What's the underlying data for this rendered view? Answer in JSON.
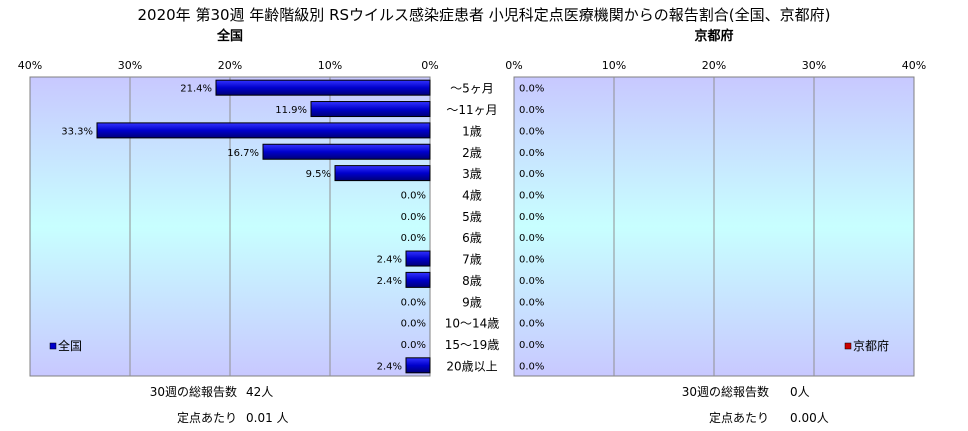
{
  "title": "2020年 第30週 年齢階級別 RSウイルス感染症患者 小児科定点医療機関からの報告割合(全国、京都府)",
  "categories": [
    "～5ヶ月",
    "～11ヶ月",
    "1歳",
    "2歳",
    "3歳",
    "4歳",
    "5歳",
    "6歳",
    "7歳",
    "8歳",
    "9歳",
    "10～14歳",
    "15～19歳",
    "20歳以上"
  ],
  "colors": {
    "bar": "#0000CC",
    "bar_dark": "#000066",
    "right_bar": "#CC0000"
  },
  "chart_data": [
    {
      "type": "bar",
      "orientation": "horizontal",
      "direction": "right-to-left",
      "title": "全国",
      "categories": [
        "～5ヶ月",
        "～11ヶ月",
        "1歳",
        "2歳",
        "3歳",
        "4歳",
        "5歳",
        "6歳",
        "7歳",
        "8歳",
        "9歳",
        "10～14歳",
        "15～19歳",
        "20歳以上"
      ],
      "series": [
        {
          "name": "全国",
          "values": [
            21.4,
            11.9,
            33.3,
            16.7,
            9.5,
            0.0,
            0.0,
            0.0,
            2.4,
            2.4,
            0.0,
            0.0,
            0.0,
            2.4
          ]
        }
      ],
      "value_labels": [
        "21.4%",
        "11.9%",
        "33.3%",
        "16.7%",
        "9.5%",
        "0.0%",
        "0.0%",
        "0.0%",
        "2.4%",
        "2.4%",
        "0.0%",
        "0.0%",
        "0.0%",
        "2.4%"
      ],
      "xlim": [
        0,
        40
      ],
      "xticks": [
        "40%",
        "30%",
        "20%",
        "10%",
        "0%"
      ],
      "grid": true,
      "legend": "bottom-left"
    },
    {
      "type": "bar",
      "orientation": "horizontal",
      "direction": "left-to-right",
      "title": "京都府",
      "categories": [
        "～5ヶ月",
        "～11ヶ月",
        "1歳",
        "2歳",
        "3歳",
        "4歳",
        "5歳",
        "6歳",
        "7歳",
        "8歳",
        "9歳",
        "10～14歳",
        "15～19歳",
        "20歳以上"
      ],
      "series": [
        {
          "name": "京都府",
          "values": [
            0.0,
            0.0,
            0.0,
            0.0,
            0.0,
            0.0,
            0.0,
            0.0,
            0.0,
            0.0,
            0.0,
            0.0,
            0.0,
            0.0
          ]
        }
      ],
      "value_labels": [
        "0.0%",
        "0.0%",
        "0.0%",
        "0.0%",
        "0.0%",
        "0.0%",
        "0.0%",
        "0.0%",
        "0.0%",
        "0.0%",
        "0.0%",
        "0.0%",
        "0.0%",
        "0.0%"
      ],
      "xlim": [
        0,
        40
      ],
      "xticks": [
        "0%",
        "10%",
        "20%",
        "30%",
        "40%"
      ],
      "grid": true,
      "legend": "bottom-right"
    }
  ],
  "footer": {
    "left": [
      {
        "label": "30週の総報告数",
        "value": "42人"
      },
      {
        "label": "定点あたり",
        "value": "0.01 人"
      }
    ],
    "right": [
      {
        "label": "30週の総報告数",
        "value": "0人"
      },
      {
        "label": "定点あたり",
        "value": "0.00人"
      }
    ]
  }
}
